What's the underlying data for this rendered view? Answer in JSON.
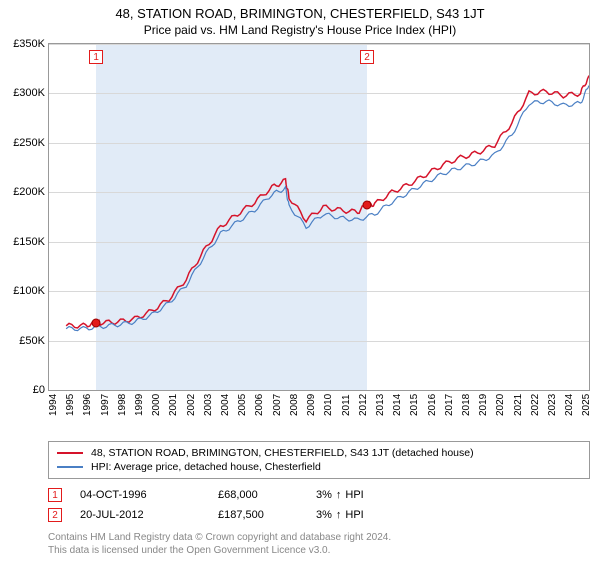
{
  "title": "48, STATION ROAD, BRIMINGTON, CHESTERFIELD, S43 1JT",
  "subtitle": "Price paid vs. HM Land Registry's House Price Index (HPI)",
  "chart": {
    "type": "line",
    "background_color": "#ffffff",
    "grid_color": "#d8d8d8",
    "border_color": "#999999",
    "shade_color": "#c9daf0",
    "xlim": [
      1994,
      2025.5
    ],
    "ylim": [
      0,
      350000
    ],
    "ytick_step": 50000,
    "yticks": [
      "£0",
      "£50K",
      "£100K",
      "£150K",
      "£200K",
      "£250K",
      "£300K",
      "£350K"
    ],
    "xticks": [
      1994,
      1995,
      1996,
      1997,
      1998,
      1999,
      2000,
      2001,
      2002,
      2003,
      2004,
      2005,
      2006,
      2007,
      2008,
      2009,
      2010,
      2011,
      2012,
      2013,
      2014,
      2015,
      2016,
      2017,
      2018,
      2019,
      2020,
      2021,
      2022,
      2023,
      2024,
      2025
    ],
    "shaded_ranges": [
      [
        1996.75,
        2012.55
      ]
    ],
    "series": [
      {
        "name": "48, STATION ROAD, BRIMINGTON, CHESTERFIELD, S43 1JT (detached house)",
        "color": "#d5132a",
        "line_width": 1.5,
        "x": [
          1995,
          1996,
          1996.75,
          1997,
          1998,
          1999,
          2000,
          2001,
          2002,
          2003,
          2004,
          2005,
          2006,
          2007,
          2007.8,
          2008,
          2009,
          2010,
          2011,
          2012,
          2012.55,
          2013,
          2014,
          2015,
          2016,
          2017,
          2018,
          2019,
          2020,
          2021,
          2022,
          2023,
          2024,
          2025,
          2025.5
        ],
        "y": [
          65000,
          65000,
          68000,
          68000,
          69000,
          72000,
          80000,
          92000,
          112000,
          140000,
          165000,
          178000,
          190000,
          205000,
          212000,
          195000,
          172000,
          185000,
          182000,
          180000,
          187500,
          188000,
          200000,
          208000,
          218000,
          228000,
          235000,
          240000,
          248000,
          270000,
          300000,
          302000,
          298000,
          300000,
          318000
        ]
      },
      {
        "name": "HPI: Average price, detached house, Chesterfield",
        "color": "#4a7fc4",
        "line_width": 1.2,
        "x": [
          1995,
          1996,
          1997,
          1998,
          1999,
          2000,
          2001,
          2002,
          2003,
          2004,
          2005,
          2006,
          2007,
          2007.8,
          2008,
          2009,
          2010,
          2011,
          2012,
          2013,
          2014,
          2015,
          2016,
          2017,
          2018,
          2019,
          2020,
          2021,
          2022,
          2023,
          2024,
          2025,
          2025.5
        ],
        "y": [
          62000,
          62000,
          64000,
          66000,
          69000,
          76000,
          88000,
          106000,
          134000,
          158000,
          170000,
          182000,
          198000,
          204000,
          186000,
          165000,
          178000,
          174000,
          172000,
          178000,
          190000,
          200000,
          210000,
          219000,
          225000,
          230000,
          238000,
          258000,
          290000,
          292000,
          288000,
          290000,
          308000
        ]
      }
    ],
    "markers": [
      {
        "n": 1,
        "x": 1996.75,
        "y": 68000
      },
      {
        "n": 2,
        "x": 2012.55,
        "y": 187500
      }
    ]
  },
  "legend": {
    "items": [
      {
        "color": "#d5132a",
        "label": "48, STATION ROAD, BRIMINGTON, CHESTERFIELD, S43 1JT (detached house)"
      },
      {
        "color": "#4a7fc4",
        "label": "HPI: Average price, detached house, Chesterfield"
      }
    ]
  },
  "sales": [
    {
      "n": "1",
      "date": "04-OCT-1996",
      "price": "£68,000",
      "change": "3%",
      "direction": "↑",
      "vs": "HPI"
    },
    {
      "n": "2",
      "date": "20-JUL-2012",
      "price": "£187,500",
      "change": "3%",
      "direction": "↑",
      "vs": "HPI"
    }
  ],
  "footer": {
    "line1": "Contains HM Land Registry data © Crown copyright and database right 2024.",
    "line2": "This data is licensed under the Open Government Licence v3.0."
  }
}
